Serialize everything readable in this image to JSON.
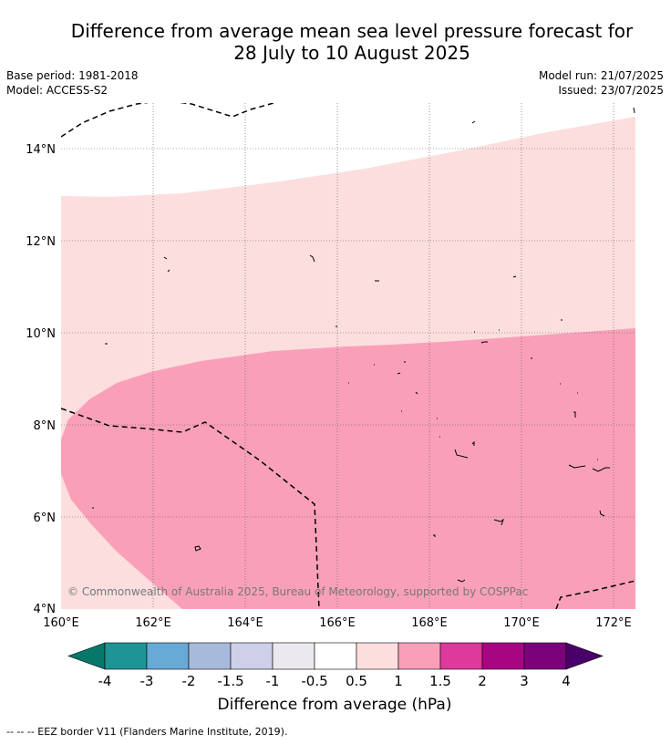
{
  "title_line1": "Difference from average mean sea level pressure forecast for",
  "title_line2": "28 July to 10 August 2025",
  "base_period": "Base period: 1981-2018",
  "model": "Model: ACCESS-S2",
  "model_run": "Model run: 21/07/2025",
  "issued": "Issued: 23/07/2025",
  "copyright": "© Commonwealth of Australia 2025, Bureau of Meteorology, supported by COSPPac",
  "footer": "-- -- -- EEZ border V11 (Flanders Marine Institute, 2019).",
  "map": {
    "lon_range": [
      160,
      172.5
    ],
    "lat_range": [
      4,
      15
    ],
    "x_ticks": [
      "160°E",
      "162°E",
      "164°E",
      "166°E",
      "168°E",
      "170°E",
      "172°E"
    ],
    "y_ticks": [
      "4°N",
      "6°N",
      "8°N",
      "10°N",
      "12°N",
      "14°N"
    ],
    "regions": [
      {
        "level": "0.5 to 1",
        "color": "#fcdede"
      },
      {
        "level": "1 to 1.5",
        "color": "#f9a0b8"
      }
    ]
  },
  "colorbar": {
    "title": "Difference from average (hPa)",
    "labels": [
      "-4",
      "-3",
      "-2",
      "-1.5",
      "-1",
      "-0.5",
      "0.5",
      "1",
      "1.5",
      "2",
      "3",
      "4"
    ],
    "colors": [
      "#06786a",
      "#1e9496",
      "#67aad6",
      "#a8badc",
      "#cdd0e6",
      "#ebe8ee",
      "#ffffff",
      "#fcdede",
      "#f9a0b8",
      "#dd3a9c",
      "#a80583",
      "#7b027a",
      "#4a006a"
    ]
  }
}
